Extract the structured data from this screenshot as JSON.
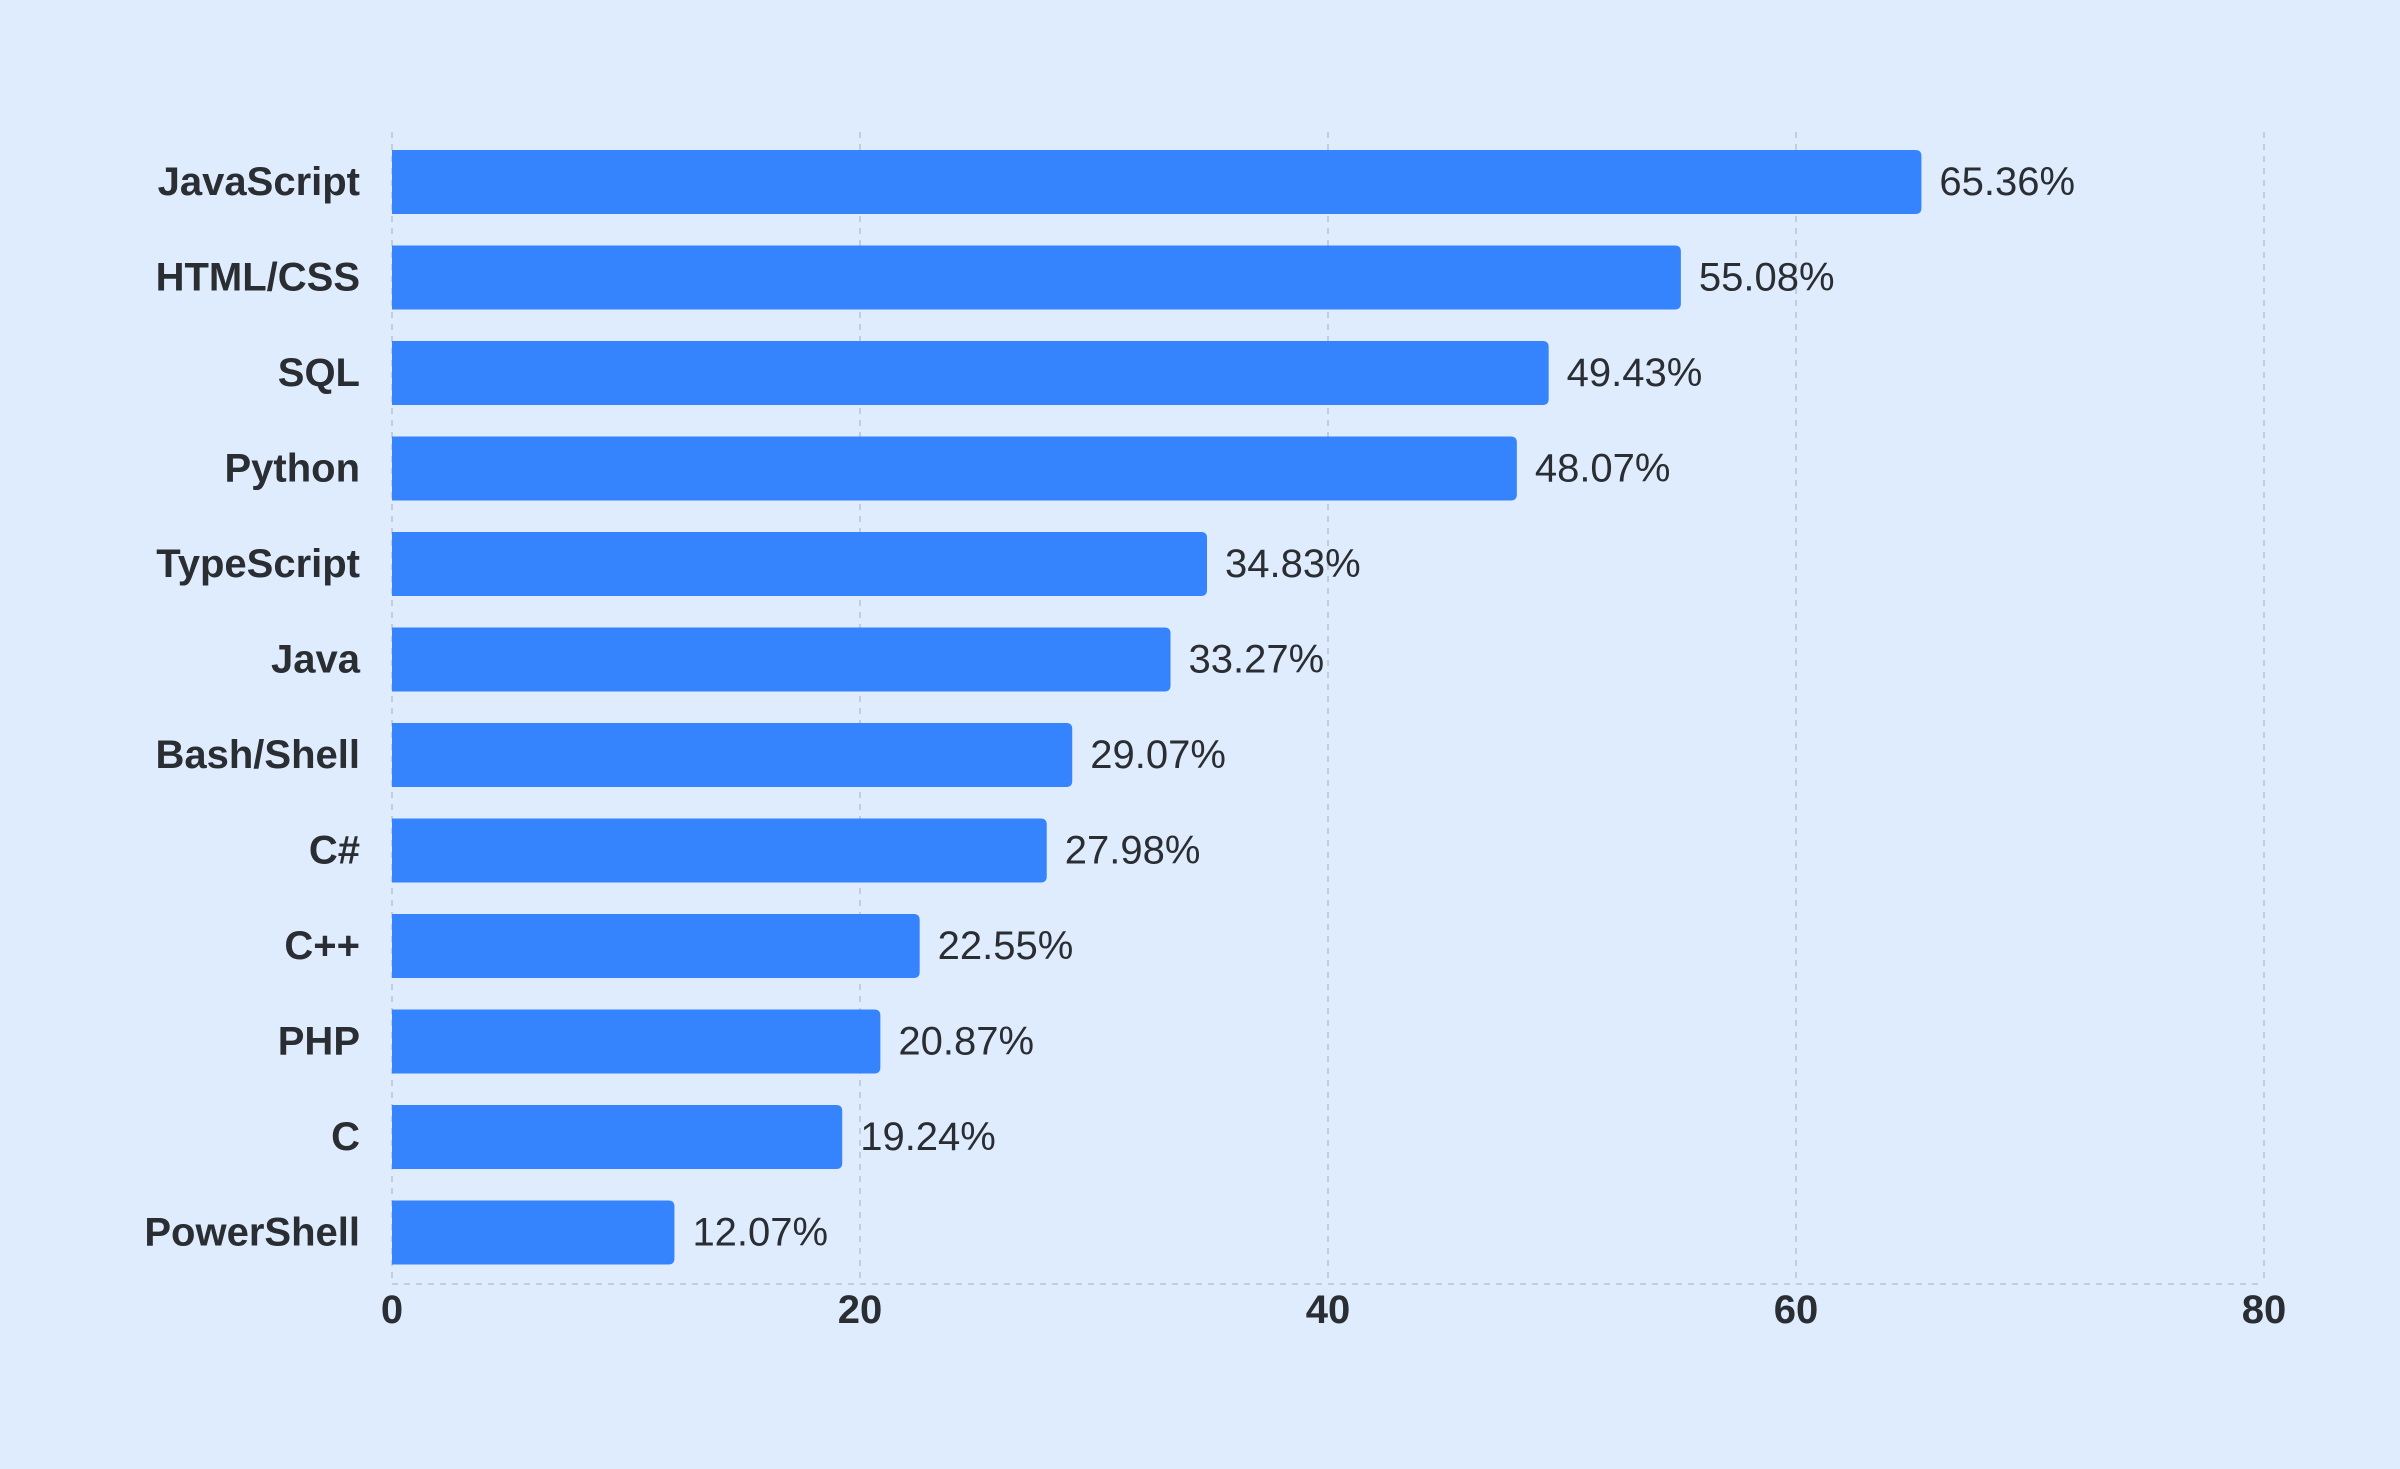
{
  "chart_data": {
    "type": "bar",
    "orientation": "horizontal",
    "categories": [
      "JavaScript",
      "HTML/CSS",
      "SQL",
      "Python",
      "TypeScript",
      "Java",
      "Bash/Shell",
      "C#",
      "C++",
      "PHP",
      "C",
      "PowerShell"
    ],
    "values": [
      65.36,
      55.08,
      49.43,
      48.07,
      34.83,
      33.27,
      29.07,
      27.98,
      22.55,
      20.87,
      19.24,
      12.07
    ],
    "value_labels": [
      "65.36%",
      "55.08%",
      "49.43%",
      "48.07%",
      "34.83%",
      "33.27%",
      "29.07%",
      "27.98%",
      "22.55%",
      "20.87%",
      "19.24%",
      "12.07%"
    ],
    "xlim": [
      0,
      80
    ],
    "x_ticks": [
      0,
      20,
      40,
      60,
      80
    ],
    "x_tick_labels": [
      "0",
      "20",
      "40",
      "60",
      "80"
    ],
    "grid": true,
    "title": "",
    "xlabel": "",
    "ylabel": "",
    "colors": {
      "background": "#dfecfd",
      "bar": "#3584fd",
      "text": "#2a2e33",
      "grid": "#c3ccd8"
    }
  }
}
